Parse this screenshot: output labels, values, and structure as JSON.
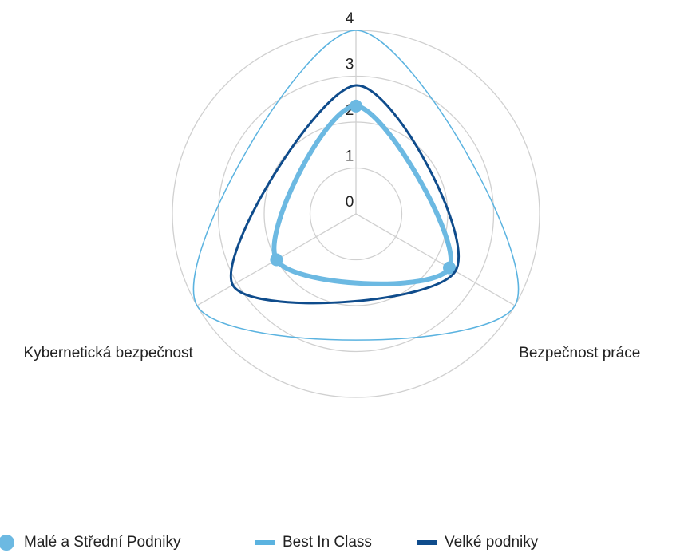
{
  "chart_data": {
    "type": "radar",
    "categories": [
      null,
      "Bezpečnost práce",
      "Kybernetická bezpečnost"
    ],
    "series": [
      {
        "name": "Malé a Střední Podniky",
        "color": "#6cb9e2",
        "values": [
          2.35,
          2.35,
          2.0
        ]
      },
      {
        "name": "Best In Class",
        "color": "#5bb3e0",
        "values": [
          4,
          4,
          4
        ]
      },
      {
        "name": "Velké podniky",
        "color": "#0f4c8c",
        "values": [
          2.8,
          2.5,
          3.1
        ]
      }
    ],
    "ylim": [
      0,
      4
    ],
    "yticks": [
      0,
      1,
      2,
      3,
      4
    ],
    "grid": true
  }
}
